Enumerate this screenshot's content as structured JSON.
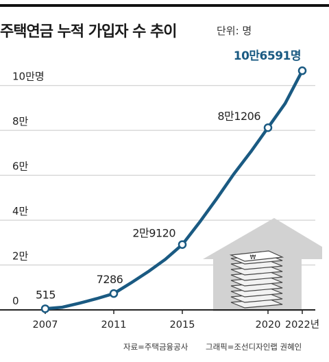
{
  "title": "주택연금 누적 가입자 수 추이",
  "unit_label": "단위: 명",
  "source": "자료=주택금융공사",
  "credit": "그래픽=조선디자인랩 권혜인",
  "colors": {
    "line": "#1a5a82",
    "grid": "#c8c8c8",
    "house": "#d2d2d2",
    "highlight_label": "#1a5a82"
  },
  "illustration": {
    "name": "house-with-money-stack-icon"
  },
  "chart_data": {
    "type": "line",
    "title": "주택연금 누적 가입자 수 추이",
    "ylabel": "단위: 명",
    "ylim": [
      0,
      110000
    ],
    "yticks": [
      0,
      20000,
      40000,
      60000,
      80000,
      100000
    ],
    "ytick_labels": [
      "0",
      "2만",
      "4만",
      "6만",
      "8만",
      "10만명"
    ],
    "xlim": [
      2007,
      2022
    ],
    "xticks": [
      2007,
      2011,
      2015,
      2020,
      2022
    ],
    "xtick_labels": [
      "2007",
      "2011",
      "2015",
      "2020",
      "2022년"
    ],
    "grid": true,
    "series": [
      {
        "x": [
          2007,
          2008,
          2009,
          2010,
          2011,
          2012,
          2013,
          2014,
          2015,
          2016,
          2017,
          2018,
          2019,
          2020,
          2021,
          2022
        ],
        "values": [
          515,
          1200,
          3000,
          5000,
          7286,
          12000,
          17000,
          22500,
          29120,
          39000,
          49500,
          60500,
          70500,
          81206,
          92000,
          106591
        ]
      }
    ],
    "annotations": [
      {
        "x": 2007,
        "y": 515,
        "label": "515",
        "highlight": false
      },
      {
        "x": 2011,
        "y": 7286,
        "label": "7286",
        "highlight": false
      },
      {
        "x": 2015,
        "y": 29120,
        "label": "2만9120",
        "highlight": false
      },
      {
        "x": 2020,
        "y": 81206,
        "label": "8만1206",
        "highlight": false
      },
      {
        "x": 2022,
        "y": 106591,
        "label": "10만6591명",
        "highlight": true
      }
    ]
  }
}
